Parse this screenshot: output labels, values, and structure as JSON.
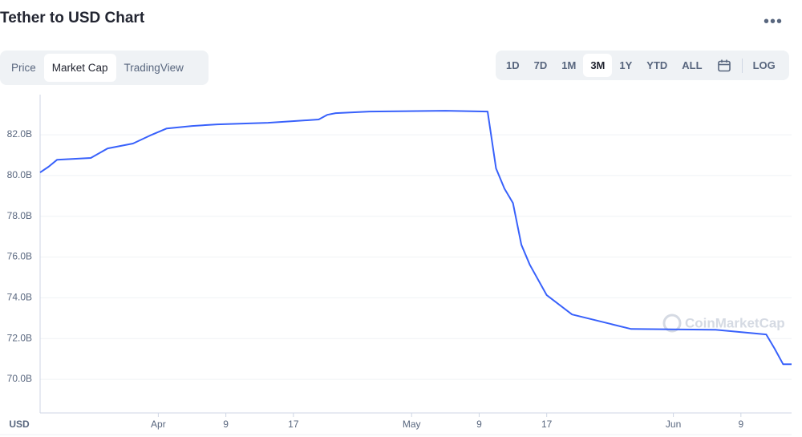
{
  "header": {
    "title": "Tether to USD Chart",
    "menu": "•••"
  },
  "tabs": [
    "Price",
    "Market Cap",
    "TradingView"
  ],
  "ranges": [
    "1D",
    "7D",
    "1M",
    "3M",
    "1Y",
    "YTD",
    "ALL"
  ],
  "log_button": "LOG",
  "chart_data": {
    "type": "line",
    "y_axis_label": "USD",
    "watermark": "CoinMarketCap",
    "x": [
      "03-18",
      "03-19",
      "03-20",
      "03-24",
      "03-26",
      "03-29",
      "03-31",
      "04-02",
      "04-05",
      "04-08",
      "04-14",
      "04-20",
      "04-21",
      "04-22",
      "04-26",
      "05-05",
      "05-10",
      "05-11",
      "05-12",
      "05-13",
      "05-14",
      "05-15",
      "05-17",
      "05-20",
      "05-27",
      "06-06",
      "06-12",
      "06-13",
      "06-14",
      "06-15"
    ],
    "series": [
      {
        "name": "Market Cap",
        "color": "#3861fb",
        "values": [
          80.15,
          80.43,
          80.77,
          80.86,
          81.33,
          81.57,
          81.96,
          82.31,
          82.43,
          82.51,
          82.59,
          82.75,
          82.98,
          83.06,
          83.14,
          83.18,
          83.14,
          80.35,
          79.36,
          78.65,
          76.6,
          75.62,
          74.13,
          73.18,
          72.47,
          72.43,
          72.2,
          71.5,
          70.74,
          70.74
        ]
      }
    ],
    "xlim": [
      "03-18",
      "06-15"
    ],
    "xticks": [
      {
        "value": "04-01",
        "label": "Apr"
      },
      {
        "value": "04-09",
        "label": "9"
      },
      {
        "value": "04-17",
        "label": "17"
      },
      {
        "value": "05-01",
        "label": "May"
      },
      {
        "value": "05-09",
        "label": "9"
      },
      {
        "value": "05-17",
        "label": "17"
      },
      {
        "value": "06-01",
        "label": "Jun"
      },
      {
        "value": "06-09",
        "label": "9"
      }
    ],
    "ylim": [
      68.35,
      83.97
    ],
    "yticks": [
      {
        "value": 70,
        "label": "70.0B"
      },
      {
        "value": 72,
        "label": "72.0B"
      },
      {
        "value": 74,
        "label": "74.0B"
      },
      {
        "value": 76,
        "label": "76.0B"
      },
      {
        "value": 78,
        "label": "78.0B"
      },
      {
        "value": 80,
        "label": "80.0B"
      },
      {
        "value": 82,
        "label": "82.0B"
      }
    ],
    "grid": true
  }
}
